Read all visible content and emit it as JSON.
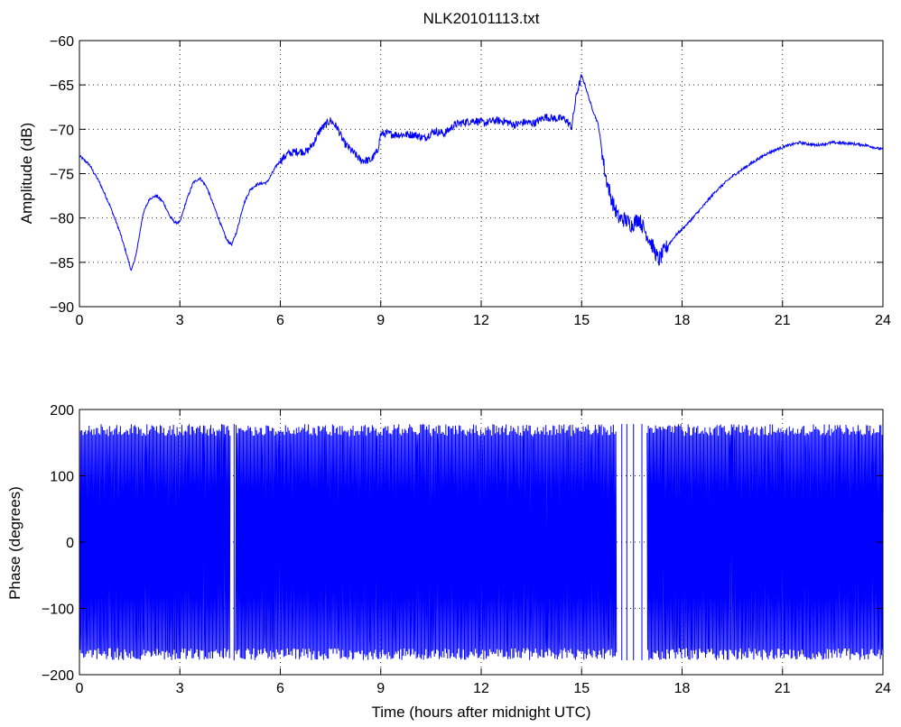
{
  "figure": {
    "title": "NLK20101113.txt",
    "background": "#ffffff",
    "series_color": "#0000ff"
  },
  "chart_data": [
    {
      "type": "line",
      "title": "NLK20101113.txt",
      "xlabel": "",
      "ylabel": "Amplitude (dB)",
      "xlim": [
        0,
        24
      ],
      "ylim": [
        -90,
        -60
      ],
      "xticks": [
        0,
        3,
        6,
        9,
        12,
        15,
        18,
        21,
        24
      ],
      "yticks": [
        -90,
        -85,
        -80,
        -75,
        -70,
        -65,
        -60
      ],
      "grid": true,
      "series": [
        {
          "x": [
            0,
            0.3,
            0.6,
            0.9,
            1.2,
            1.4,
            1.55,
            1.7,
            1.9,
            2.1,
            2.3,
            2.5,
            2.7,
            2.85,
            3.0,
            3.2,
            3.4,
            3.6,
            3.8,
            4.0,
            4.2,
            4.4,
            4.55,
            4.7,
            4.9,
            5.1,
            5.3,
            5.6,
            5.9,
            6.2,
            6.5,
            6.8,
            7.0,
            7.2,
            7.5,
            7.7,
            7.9,
            8.1,
            8.4,
            8.7,
            8.9,
            9.0,
            9.2,
            9.5,
            9.8,
            10.0,
            10.3,
            10.6,
            10.9,
            11.2,
            11.5,
            11.8,
            12.1,
            12.4,
            12.7,
            13.0,
            13.3,
            13.6,
            13.9,
            14.2,
            14.5,
            14.7,
            14.85,
            15.0,
            15.1,
            15.3,
            15.5,
            15.7,
            15.9,
            16.1,
            16.3,
            16.5,
            16.7,
            16.9,
            17.1,
            17.3,
            17.5,
            17.8,
            18.2,
            18.6,
            19.0,
            19.5,
            20.0,
            20.5,
            21.0,
            21.5,
            22.0,
            22.5,
            23.0,
            23.5,
            24.0
          ],
          "y": [
            -73.0,
            -74.0,
            -76.0,
            -78.5,
            -81.5,
            -84.0,
            -86.0,
            -84.0,
            -79.5,
            -77.8,
            -77.5,
            -78.2,
            -79.8,
            -80.5,
            -80.5,
            -78.0,
            -76.0,
            -75.5,
            -76.5,
            -78.5,
            -80.5,
            -82.5,
            -83.0,
            -81.5,
            -78.5,
            -76.8,
            -76.2,
            -76.0,
            -74.0,
            -72.8,
            -72.5,
            -72.5,
            -71.5,
            -70.0,
            -69.0,
            -69.8,
            -71.5,
            -72.3,
            -73.5,
            -73.5,
            -72.5,
            -70.5,
            -70.5,
            -70.6,
            -70.6,
            -70.6,
            -71.0,
            -70.2,
            -70.5,
            -69.5,
            -69.2,
            -69.0,
            -69.3,
            -69.0,
            -69.1,
            -69.5,
            -69.2,
            -69.3,
            -68.6,
            -68.8,
            -68.8,
            -69.8,
            -66.0,
            -64.0,
            -65.0,
            -67.5,
            -69.5,
            -75.0,
            -78.0,
            -80.0,
            -80.2,
            -80.8,
            -80.0,
            -81.5,
            -83.0,
            -84.8,
            -83.5,
            -82.0,
            -80.5,
            -78.8,
            -77.0,
            -75.3,
            -74.0,
            -72.8,
            -72.0,
            -71.5,
            -71.8,
            -71.5,
            -71.6,
            -71.8,
            -72.3
          ]
        }
      ]
    },
    {
      "type": "line",
      "title": "",
      "xlabel": "Time (hours after midnight UTC)",
      "ylabel": "Phase (degrees)",
      "xlim": [
        0,
        24
      ],
      "ylim": [
        -200,
        200
      ],
      "xticks": [
        0,
        3,
        6,
        9,
        12,
        15,
        18,
        21,
        24
      ],
      "yticks": [
        -200,
        -100,
        0,
        100,
        200
      ],
      "grid": true,
      "series": [
        {
          "description_free_phase": true,
          "x_start": 0,
          "x_end": 24,
          "amplitude": 178,
          "gaps": [
            [
              4.5,
              4.65
            ],
            [
              16.05,
              16.95
            ]
          ],
          "gap_spikes": [
            4.62,
            16.2,
            16.35,
            16.55,
            16.8
          ]
        }
      ]
    }
  ]
}
